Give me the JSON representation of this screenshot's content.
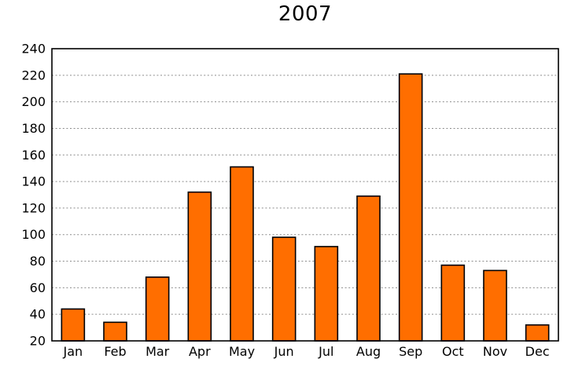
{
  "chart_data": {
    "type": "bar",
    "title": "2007",
    "categories": [
      "Jan",
      "Feb",
      "Mar",
      "Apr",
      "May",
      "Jun",
      "Jul",
      "Aug",
      "Sep",
      "Oct",
      "Nov",
      "Dec"
    ],
    "values": [
      44,
      34,
      68,
      132,
      151,
      98,
      91,
      129,
      221,
      77,
      73,
      32
    ],
    "xlabel": "",
    "ylabel": "",
    "ylim": [
      20,
      240
    ],
    "yticks": [
      20,
      40,
      60,
      80,
      100,
      120,
      140,
      160,
      180,
      200,
      220,
      240
    ],
    "grid": "horizontal-dotted",
    "legend": "none",
    "colors": {
      "bar_fill": "#ff6e00",
      "bar_edge": "#000000",
      "gridline": "#8c8c8c",
      "axis_box": "#000000",
      "text": "#000000",
      "background": "#ffffff"
    }
  }
}
